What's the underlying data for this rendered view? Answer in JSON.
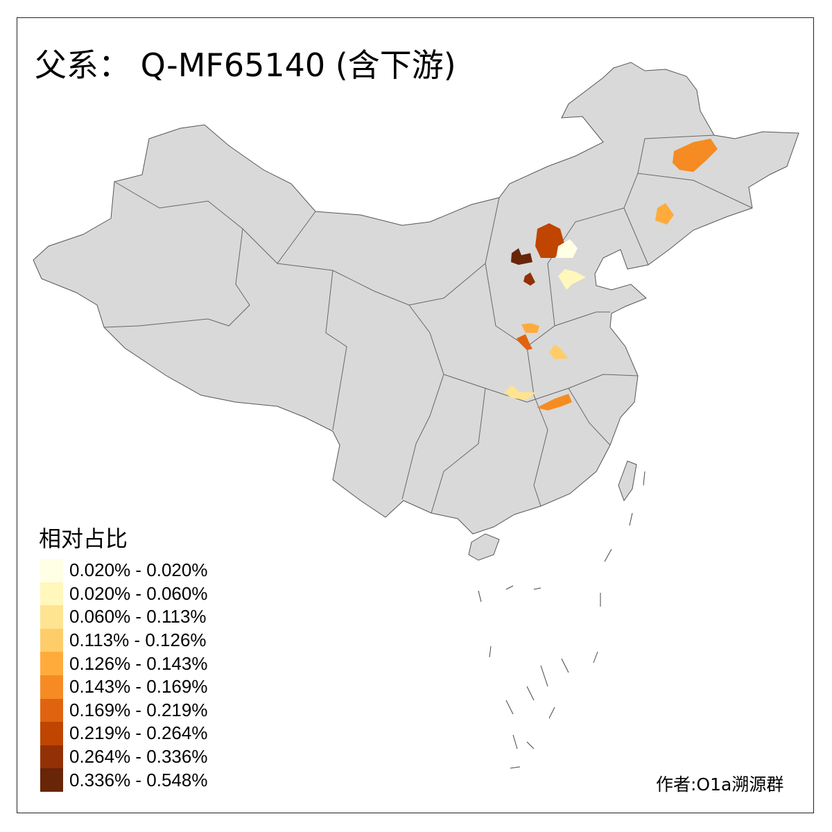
{
  "title": "父系： Q-MF65140 (含下游)",
  "legend": {
    "title": "相对占比",
    "items": [
      {
        "label": "0.020% - 0.020%",
        "color": "#FFFFE5"
      },
      {
        "label": "0.020% - 0.060%",
        "color": "#FFF7BC"
      },
      {
        "label": "0.060% - 0.113%",
        "color": "#FEE391"
      },
      {
        "label": "0.113% - 0.126%",
        "color": "#FECD6A"
      },
      {
        "label": "0.126% - 0.143%",
        "color": "#FEAB3C"
      },
      {
        "label": "0.143% - 0.169%",
        "color": "#F58B22"
      },
      {
        "label": "0.169% - 0.219%",
        "color": "#E0640F"
      },
      {
        "label": "0.219% - 0.264%",
        "color": "#BF4500"
      },
      {
        "label": "0.264% - 0.336%",
        "color": "#933005"
      },
      {
        "label": "0.336% - 0.548%",
        "color": "#682507"
      }
    ]
  },
  "map": {
    "base_fill": "#D9D9D9",
    "border_color": "#555555",
    "highlighted_region_classes": [
      5,
      4,
      7,
      0,
      9,
      8,
      1,
      4,
      6,
      3,
      2,
      5
    ]
  },
  "credit": "作者:O1a溯源群"
}
